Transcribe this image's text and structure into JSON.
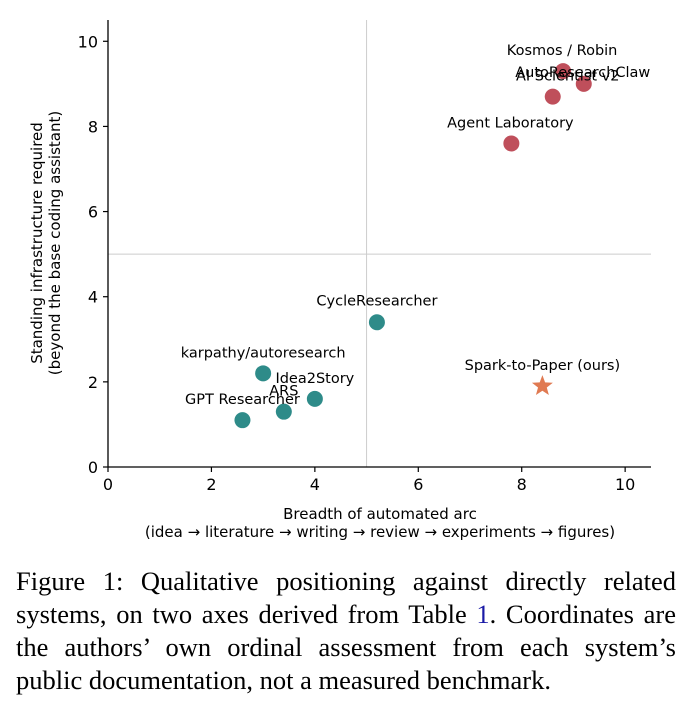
{
  "chart_data": {
    "type": "scatter",
    "xlabel": "Breadth of automated arc",
    "xlabel_sub": "(idea → literature → writing → review → experiments → figures)",
    "ylabel": "Standing infrastructure required",
    "ylabel_sub": "(beyond the base coding assistant)",
    "xlim": [
      0,
      10.5
    ],
    "ylim": [
      0,
      10.5
    ],
    "xticks": [
      0,
      2,
      4,
      6,
      8,
      10
    ],
    "yticks": [
      0,
      2,
      4,
      6,
      8,
      10
    ],
    "reference_lines": {
      "x": 5,
      "y": 5
    },
    "grid": false,
    "colors": {
      "infra_heavy": "#bf4f5b",
      "lightweight": "#2e8b89",
      "ours": "#e07a52",
      "reference": "#cccccc"
    },
    "points": [
      {
        "label": "Kosmos / Robin",
        "x": 8.8,
        "y": 9.3,
        "group": "infra_heavy",
        "marker": "circle"
      },
      {
        "label": "AutoResearchClaw",
        "x": 9.2,
        "y": 9.0,
        "group": "infra_heavy",
        "marker": "circle"
      },
      {
        "label": "AI Scientist v2",
        "x": 8.6,
        "y": 8.7,
        "group": "infra_heavy",
        "marker": "circle"
      },
      {
        "label": "Agent Laboratory",
        "x": 7.8,
        "y": 7.6,
        "group": "infra_heavy",
        "marker": "circle"
      },
      {
        "label": "CycleResearcher",
        "x": 5.2,
        "y": 3.4,
        "group": "lightweight",
        "marker": "circle"
      },
      {
        "label": "karpathy/autoresearch",
        "x": 3.0,
        "y": 2.2,
        "group": "lightweight",
        "marker": "circle"
      },
      {
        "label": "Idea2Story",
        "x": 4.0,
        "y": 1.6,
        "group": "lightweight",
        "marker": "circle"
      },
      {
        "label": "ARS",
        "x": 3.4,
        "y": 1.3,
        "group": "lightweight",
        "marker": "circle"
      },
      {
        "label": "GPT Researcher",
        "x": 2.6,
        "y": 1.1,
        "group": "lightweight",
        "marker": "circle"
      },
      {
        "label": "Spark-to-Paper (ours)",
        "x": 8.4,
        "y": 1.9,
        "group": "ours",
        "marker": "star"
      }
    ]
  },
  "caption": {
    "prefix": "Figure 1: Qualitative positioning against directly related systems, on two axes derived from Table ",
    "ref": "1",
    "suffix": ". Coordinates are the authors’ own ordinal assessment from each system’s public documentation, not a measured benchmark."
  }
}
